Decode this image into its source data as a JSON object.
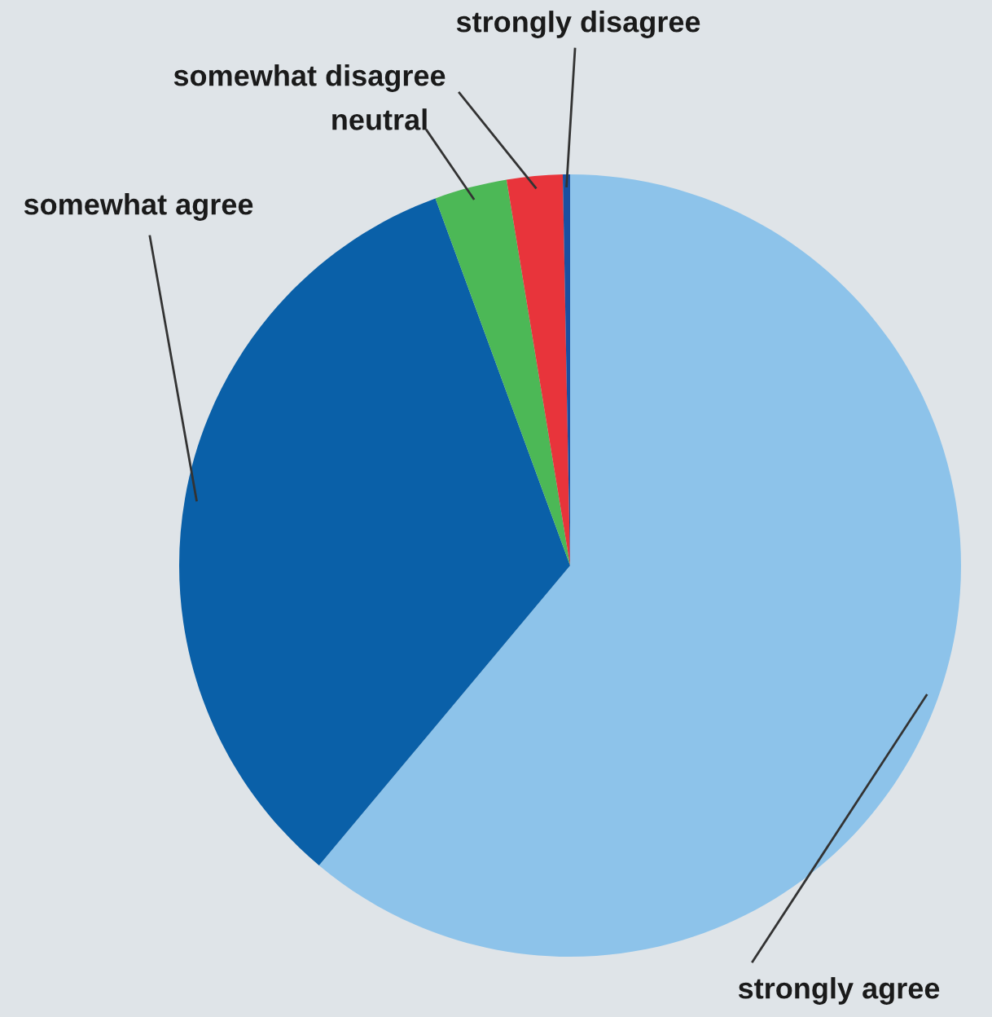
{
  "chart_data": {
    "type": "pie",
    "categories": [
      "strongly agree",
      "somewhat agree",
      "neutral",
      "somewhat disagree",
      "strongly disagree"
    ],
    "values": [
      61.1,
      33.3,
      3.0,
      2.3,
      0.3
    ],
    "colors": [
      "#8dc3ea",
      "#0a60a8",
      "#4cb856",
      "#e8343b",
      "#1a50a0"
    ],
    "legend": false
  }
}
